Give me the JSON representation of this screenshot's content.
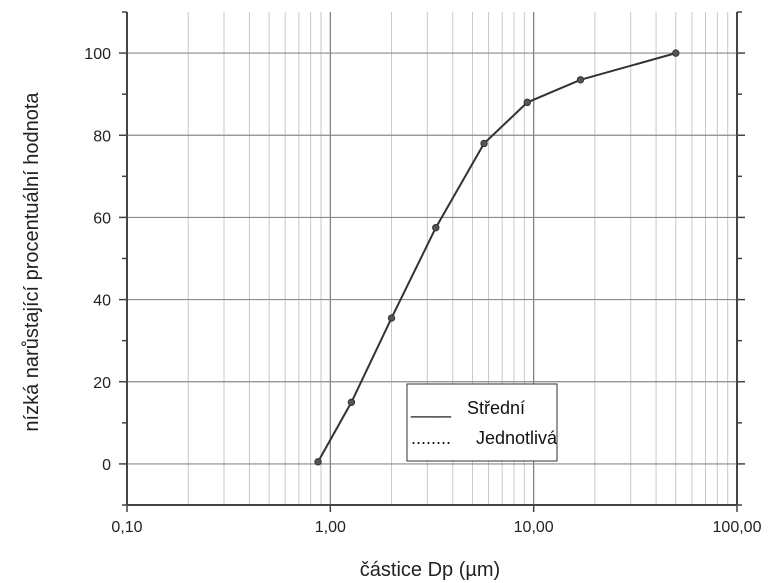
{
  "chart_data": {
    "type": "line",
    "xscale": "log",
    "xlabel": "částice Dp (µm)",
    "ylabel": "nízká narůstající procentuální hodnota",
    "xlim": [
      0.1,
      100
    ],
    "ylim": [
      -10,
      110
    ],
    "x_ticks": [
      {
        "value": 0.1,
        "label": "0,10"
      },
      {
        "value": 1,
        "label": "1,00"
      },
      {
        "value": 10,
        "label": "10,00"
      },
      {
        "value": 100,
        "label": "100,00"
      }
    ],
    "y_ticks": [
      {
        "value": 0,
        "label": "0"
      },
      {
        "value": 20,
        "label": "20"
      },
      {
        "value": 40,
        "label": "40"
      },
      {
        "value": 60,
        "label": "60"
      },
      {
        "value": 80,
        "label": "80"
      },
      {
        "value": 100,
        "label": "100"
      }
    ],
    "grid": true,
    "legend": {
      "position": "lower-middle",
      "entries": [
        {
          "line": "____",
          "label": "Střední",
          "style": "solid"
        },
        {
          "line": "........",
          "label": "Jednotlivá",
          "style": "dotted"
        }
      ]
    },
    "series": [
      {
        "name": "Střední",
        "color": "#333333",
        "points": [
          {
            "x": 0.87,
            "y": 0.5
          },
          {
            "x": 1.27,
            "y": 15
          },
          {
            "x": 2.0,
            "y": 35.5
          },
          {
            "x": 3.3,
            "y": 57.5
          },
          {
            "x": 5.7,
            "y": 78
          },
          {
            "x": 9.3,
            "y": 88
          },
          {
            "x": 17.0,
            "y": 93.5
          },
          {
            "x": 50.0,
            "y": 100
          }
        ]
      }
    ]
  }
}
